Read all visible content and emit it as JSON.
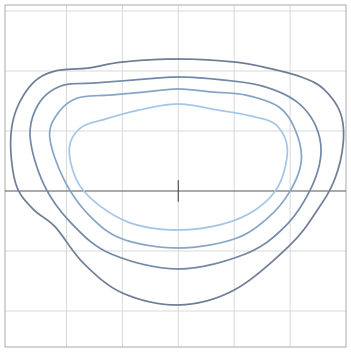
{
  "chart_data": {
    "type": "line",
    "title": "",
    "xlabel": "",
    "ylabel": "",
    "xlim": [
      -3.1,
      3.0
    ],
    "ylim": [
      -2.6,
      3.1
    ],
    "grid": true,
    "legend": "none",
    "axis_color": "#555555",
    "grid_color": "#d9d9d9",
    "frame_color": "#aaaaaa",
    "series": [
      {
        "color": "#6e7c94",
        "x": [
          -3.0,
          -2.9,
          -2.6,
          -2.2,
          -1.6,
          -1.0,
          0.0,
          1.0,
          1.6,
          2.2,
          2.6,
          2.9,
          2.95,
          2.8,
          2.5,
          2.0,
          1.0,
          0.0,
          -1.0,
          -1.7,
          -2.2,
          -2.6,
          -2.9,
          -3.0
        ],
        "y": [
          0.8,
          1.35,
          1.8,
          2.0,
          2.05,
          2.15,
          2.2,
          2.15,
          2.05,
          1.9,
          1.7,
          1.3,
          0.8,
          0.2,
          -0.3,
          -0.9,
          -1.65,
          -1.9,
          -1.7,
          -1.2,
          -0.6,
          -0.3,
          0.1,
          0.8
        ]
      },
      {
        "color": "#7189a6",
        "x": [
          -2.65,
          -2.5,
          -2.1,
          -1.5,
          -0.8,
          0.0,
          0.8,
          1.5,
          2.1,
          2.45,
          2.55,
          2.35,
          1.9,
          1.2,
          0.0,
          -1.2,
          -1.9,
          -2.4,
          -2.65
        ],
        "y": [
          0.9,
          1.45,
          1.75,
          1.8,
          1.85,
          1.9,
          1.85,
          1.75,
          1.5,
          1.1,
          0.6,
          0.0,
          -0.6,
          -1.05,
          -1.3,
          -1.05,
          -0.55,
          0.1,
          0.9
        ]
      },
      {
        "color": "#86a5c6",
        "x": [
          -2.3,
          -2.15,
          -1.8,
          -1.2,
          -0.6,
          0.0,
          0.6,
          1.2,
          1.8,
          2.1,
          2.2,
          2.0,
          1.6,
          1.0,
          0.0,
          -1.0,
          -1.6,
          -2.05,
          -2.3
        ],
        "y": [
          0.9,
          1.3,
          1.55,
          1.6,
          1.65,
          1.7,
          1.65,
          1.6,
          1.4,
          1.0,
          0.5,
          0.0,
          -0.45,
          -0.8,
          -0.95,
          -0.8,
          -0.4,
          0.2,
          0.9
        ]
      },
      {
        "color": "#a3c5e6",
        "x": [
          -1.95,
          -1.75,
          -1.3,
          -0.7,
          0.0,
          0.7,
          1.3,
          1.75,
          1.95,
          1.8,
          1.4,
          0.8,
          0.0,
          -0.8,
          -1.4,
          -1.8,
          -1.95
        ],
        "y": [
          0.7,
          1.05,
          1.2,
          1.35,
          1.45,
          1.35,
          1.25,
          1.1,
          0.7,
          0.1,
          -0.3,
          -0.55,
          -0.65,
          -0.55,
          -0.25,
          0.15,
          0.7
        ]
      }
    ]
  }
}
